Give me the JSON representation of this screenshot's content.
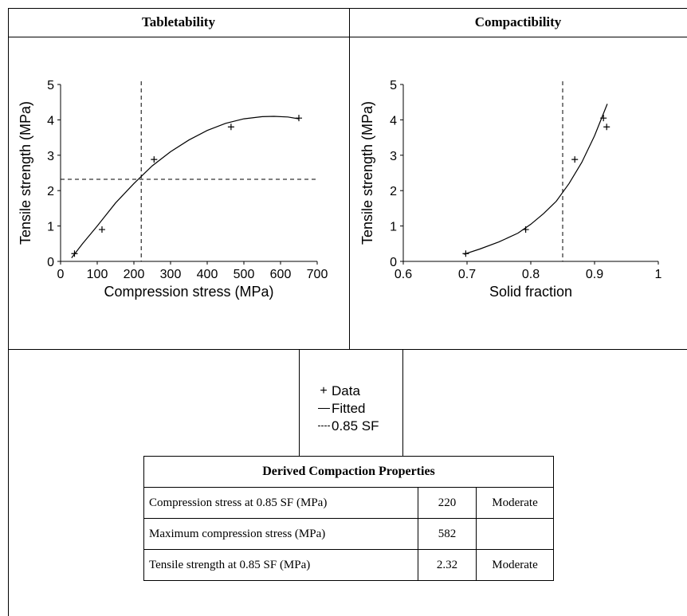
{
  "panels": {
    "left_title": "Tabletability",
    "right_title": "Compactibility"
  },
  "chart_data": [
    {
      "type": "scatter",
      "title": "Tabletability",
      "xlabel": "Compression stress (MPa)",
      "ylabel": "Tensile strength (MPa)",
      "xlim": [
        0,
        700
      ],
      "ylim": [
        0,
        5
      ],
      "xticks": [
        "0",
        "100",
        "200",
        "300",
        "400",
        "500",
        "600",
        "700"
      ],
      "yticks": [
        "0",
        "1",
        "2",
        "3",
        "4",
        "5"
      ],
      "grid": false,
      "series": [
        {
          "name": "Data",
          "x": [
            38,
            113,
            255,
            465,
            650
          ],
          "y": [
            0.22,
            0.9,
            2.88,
            3.8,
            4.05
          ]
        },
        {
          "name": "Fitted",
          "x": [
            30,
            60,
            100,
            150,
            200,
            250,
            300,
            350,
            400,
            450,
            500,
            550,
            582,
            620,
            650
          ],
          "y": [
            0.1,
            0.5,
            1.0,
            1.65,
            2.2,
            2.7,
            3.1,
            3.43,
            3.7,
            3.9,
            4.03,
            4.09,
            4.1,
            4.08,
            4.03
          ]
        },
        {
          "name": "0.85 SF",
          "vline": 220,
          "hline": 2.32
        }
      ]
    },
    {
      "type": "scatter",
      "title": "Compactibility",
      "xlabel": "Solid fraction",
      "ylabel": "Tensile strength (MPa)",
      "xlim": [
        0.6,
        1
      ],
      "ylim": [
        0,
        5
      ],
      "xticks": [
        "0.6",
        "0.7",
        "0.8",
        "0.9",
        "1"
      ],
      "yticks": [
        "0",
        "1",
        "2",
        "3",
        "4",
        "5"
      ],
      "grid": false,
      "series": [
        {
          "name": "Data",
          "x": [
            0.698,
            0.792,
            0.869,
            0.914,
            0.919
          ],
          "y": [
            0.22,
            0.9,
            2.88,
            4.05,
            3.8
          ]
        },
        {
          "name": "Fitted",
          "x": [
            0.695,
            0.72,
            0.75,
            0.78,
            0.8,
            0.82,
            0.84,
            0.86,
            0.88,
            0.9,
            0.91,
            0.92
          ],
          "y": [
            0.2,
            0.35,
            0.55,
            0.8,
            1.05,
            1.35,
            1.7,
            2.2,
            2.8,
            3.55,
            4.0,
            4.45
          ]
        },
        {
          "name": "0.85 SF",
          "vline": 0.85
        }
      ]
    }
  ],
  "legend": {
    "items": [
      {
        "symbol": "+",
        "label": "Data"
      },
      {
        "symbol": "—",
        "label": "Fitted"
      },
      {
        "symbol": "- -",
        "label": "0.85 SF"
      }
    ]
  },
  "table": {
    "title": "Derived Compaction Properties",
    "rows": [
      {
        "label": "Compression stress at 0.85 SF (MPa)",
        "value": "220",
        "rating": "Moderate"
      },
      {
        "label": "Maximum compression stress (MPa)",
        "value": "582",
        "rating": ""
      },
      {
        "label": "Tensile strength at 0.85 SF (MPa)",
        "value": "2.32",
        "rating": "Moderate"
      }
    ]
  }
}
